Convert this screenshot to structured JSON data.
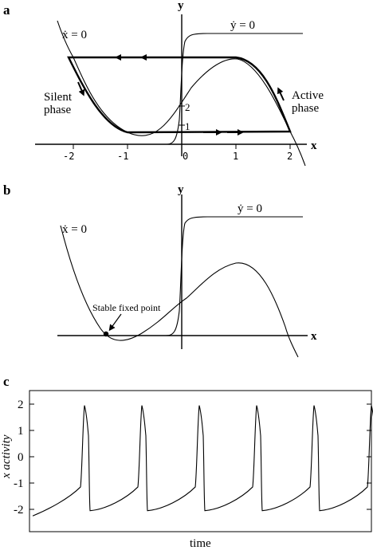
{
  "panel_a": {
    "letter": "a",
    "y_axis": "y",
    "x_axis": "x",
    "xdot_label": "ẋ = 0",
    "ydot_label": "ẏ = 0",
    "silent_label_1": "Silent",
    "silent_label_2": "phase",
    "active_label_1": "Active",
    "active_label_2": "phase",
    "x_ticks": [
      "-2",
      "-1",
      "0",
      "1",
      "2"
    ],
    "y_ticks": [
      "2",
      "1"
    ]
  },
  "panel_b": {
    "letter": "b",
    "y_axis": "y",
    "x_axis": "x",
    "xdot_label": "ẋ = 0",
    "ydot_label": "ẏ = 0",
    "fixed_point_label": "Stable fixed point"
  },
  "panel_c": {
    "letter": "c",
    "ylabel": "x activity",
    "xlabel": "time",
    "y_ticks": [
      "2",
      "1",
      "0",
      "-1",
      "-2"
    ]
  },
  "colors": {
    "ink": "#000000",
    "background": "#ffffff"
  }
}
